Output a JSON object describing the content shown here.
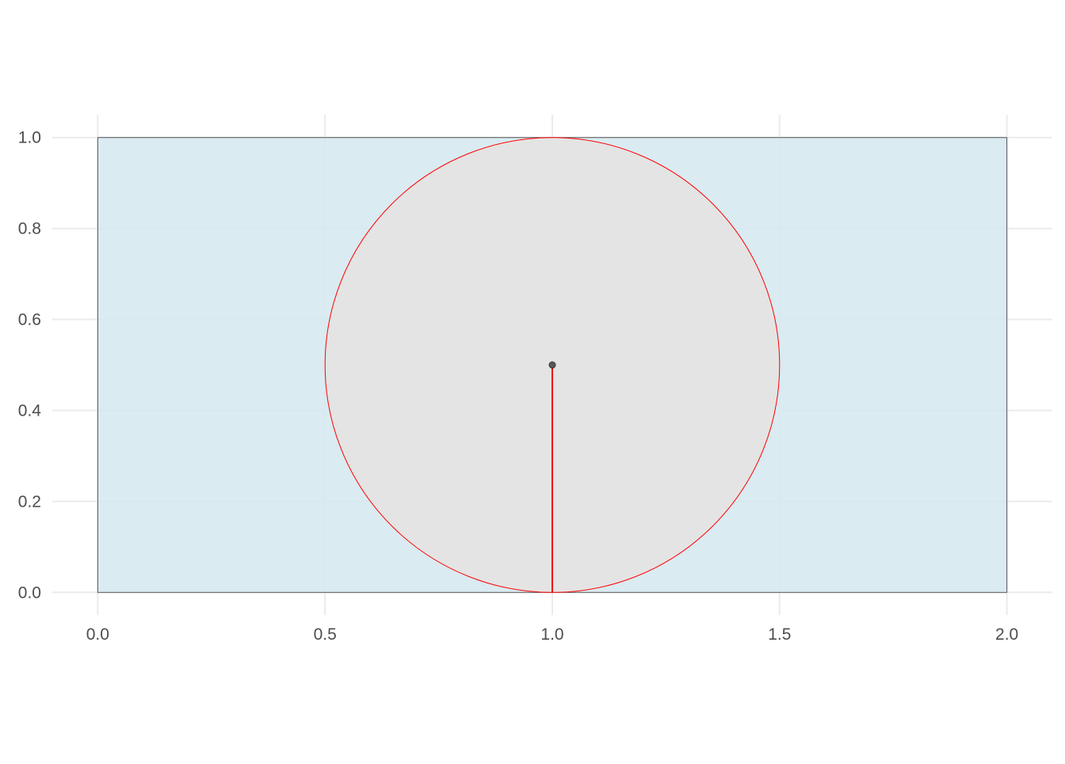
{
  "chart_data": {
    "type": "scatter",
    "title": "",
    "xlabel": "",
    "ylabel": "",
    "xlim": [
      -0.1,
      2.1
    ],
    "ylim": [
      -0.05,
      1.05
    ],
    "x_ticks": [
      0.0,
      0.5,
      1.0,
      1.5,
      2.0
    ],
    "x_tick_labels": [
      "0.0",
      "0.5",
      "1.0",
      "1.5",
      "2.0"
    ],
    "y_ticks": [
      0.0,
      0.2,
      0.4,
      0.6,
      0.8,
      1.0
    ],
    "y_tick_labels": [
      "0.0",
      "0.2",
      "0.4",
      "0.6",
      "0.8",
      "1.0"
    ],
    "grid": true,
    "background_theme": "minimal",
    "rectangle": {
      "xmin": 0,
      "xmax": 2,
      "ymin": 0,
      "ymax": 1,
      "fill": "#d6e9f1",
      "stroke": "#555555"
    },
    "circle": {
      "cx": 1,
      "cy": 0.5,
      "r": 0.5,
      "fill": "#e4e4e4",
      "stroke": "#ff0000"
    },
    "segment": {
      "x1": 1,
      "y1": 0.5,
      "x2": 1,
      "y2": 0,
      "color": "#ee0000"
    },
    "point": {
      "x": 1,
      "y": 0.5,
      "fill": "#595959",
      "stroke": "#333333"
    },
    "colors": {
      "grid": "#ebebeb",
      "text": "#4d4d4d"
    }
  }
}
